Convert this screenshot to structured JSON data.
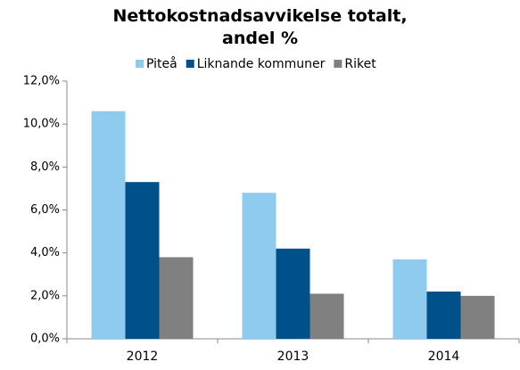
{
  "chart_data": {
    "type": "bar",
    "title": "Nettokostnadsavvikelse totalt, andel %",
    "categories": [
      "2012",
      "2013",
      "2014"
    ],
    "series": [
      {
        "name": "Piteå",
        "color": "#8fcbef",
        "values": [
          10.6,
          6.8,
          3.7
        ]
      },
      {
        "name": "Liknande kommuner",
        "color": "#00508a",
        "values": [
          7.3,
          4.2,
          2.2
        ]
      },
      {
        "name": "Riket",
        "color": "#808080",
        "values": [
          3.8,
          2.1,
          2.0
        ]
      }
    ],
    "ylim": [
      0,
      12
    ],
    "yticks": [
      {
        "value": 0,
        "label": "0,0%"
      },
      {
        "value": 2,
        "label": "2,0%"
      },
      {
        "value": 4,
        "label": "4,0%"
      },
      {
        "value": 6,
        "label": "6,0%"
      },
      {
        "value": 8,
        "label": "8,0%"
      },
      {
        "value": 10,
        "label": "10,0%"
      },
      {
        "value": 12,
        "label": "12,0%"
      }
    ],
    "grid": false,
    "legend": "top"
  }
}
